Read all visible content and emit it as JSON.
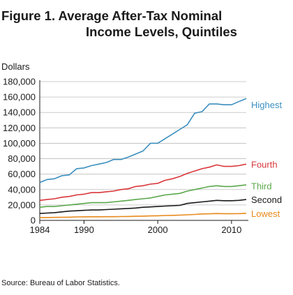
{
  "figure": {
    "title_line1": "Figure 1.  Average After-Tax Nominal",
    "title_line2": "Income Levels, Quintiles",
    "units_label": "Dollars",
    "source": "Source:  Bureau of Labor Statistics."
  },
  "chart_data": {
    "type": "line",
    "title": "Average After-Tax Nominal Income Levels, Quintiles",
    "xlabel": "",
    "ylabel": "Dollars",
    "xlim": [
      1984,
      2012
    ],
    "ylim": [
      0,
      180000
    ],
    "x_ticks": [
      1984,
      1990,
      2000,
      2010
    ],
    "y_ticks": [
      0,
      20000,
      40000,
      60000,
      80000,
      100000,
      120000,
      140000,
      160000,
      180000
    ],
    "y_tick_labels": [
      "0",
      "20,000",
      "40,000",
      "60,000",
      "80,000",
      "100,000",
      "120,000",
      "140,000",
      "160,000",
      "180,000"
    ],
    "grid": "horizontal",
    "legend": "inline labels at right end of each line",
    "x": [
      1984,
      1985,
      1986,
      1987,
      1988,
      1989,
      1990,
      1991,
      1992,
      1993,
      1994,
      1995,
      1996,
      1997,
      1998,
      1999,
      2000,
      2001,
      2002,
      2003,
      2004,
      2005,
      2006,
      2007,
      2008,
      2009,
      2010,
      2011,
      2012
    ],
    "series": [
      {
        "name": "Highest",
        "color": "#3b8fbf",
        "values": [
          49000,
          53000,
          54000,
          58000,
          59000,
          67000,
          68000,
          71000,
          73000,
          75000,
          79000,
          79000,
          82000,
          86000,
          90000,
          100000,
          100000,
          106000,
          112000,
          118000,
          124000,
          139000,
          141000,
          151000,
          151000,
          150000,
          150000,
          154000,
          158000
        ]
      },
      {
        "name": "Fourth",
        "color": "#d9373a",
        "values": [
          26000,
          27000,
          28000,
          30000,
          31000,
          33000,
          34000,
          36000,
          36000,
          37000,
          38000,
          40000,
          41000,
          44000,
          45000,
          47000,
          48000,
          52000,
          54000,
          57000,
          61000,
          64000,
          67000,
          69000,
          72000,
          70000,
          70000,
          71000,
          73000
        ]
      },
      {
        "name": "Third",
        "color": "#5aa84a",
        "values": [
          17000,
          18000,
          18000,
          19000,
          20000,
          21000,
          22000,
          23000,
          23000,
          23000,
          24000,
          25000,
          26000,
          27000,
          28000,
          29000,
          31000,
          33000,
          34000,
          35000,
          38000,
          40000,
          42000,
          44000,
          45000,
          44000,
          44000,
          45000,
          46000
        ]
      },
      {
        "name": "Second",
        "color": "#1a1a1a",
        "values": [
          9000,
          9500,
          10000,
          11000,
          12000,
          12500,
          13000,
          13500,
          13500,
          14000,
          14500,
          15000,
          15500,
          16000,
          17000,
          17500,
          18000,
          18500,
          19000,
          19500,
          22000,
          23000,
          24000,
          25000,
          26000,
          25500,
          25500,
          26000,
          27000
        ]
      },
      {
        "name": "Lowest",
        "color": "#e88a1d",
        "values": [
          3500,
          3700,
          3900,
          4000,
          4200,
          4500,
          4600,
          4700,
          4700,
          4800,
          4800,
          5000,
          5100,
          5300,
          5500,
          5800,
          6000,
          6300,
          6500,
          6800,
          7200,
          7700,
          8300,
          8500,
          8900,
          8700,
          8700,
          8800,
          9100
        ]
      }
    ]
  }
}
